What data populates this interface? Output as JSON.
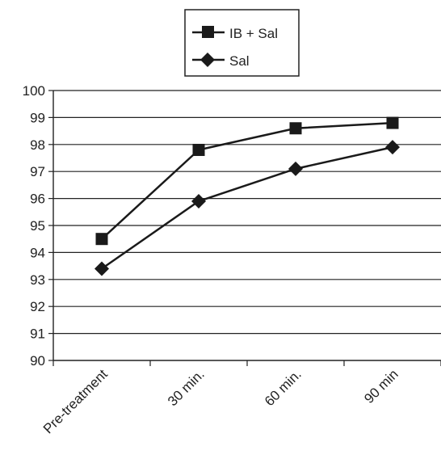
{
  "chart_data": {
    "type": "line",
    "title": "",
    "xlabel": "",
    "ylabel": "",
    "categories": [
      "Pre-treatment",
      "30 min.",
      "60 min.",
      "90 min"
    ],
    "ylim": [
      90,
      100
    ],
    "yticks": [
      90,
      91,
      92,
      93,
      94,
      95,
      96,
      97,
      98,
      99,
      100
    ],
    "grid": "horizontal",
    "legend_position": "top-center",
    "series": [
      {
        "name": "IB + Sal",
        "marker": "square",
        "color": "#1a1a1a",
        "values": [
          94.5,
          97.8,
          98.6,
          98.8
        ]
      },
      {
        "name": "Sal",
        "marker": "diamond",
        "color": "#1a1a1a",
        "values": [
          93.4,
          95.9,
          97.1,
          97.9
        ]
      }
    ]
  }
}
